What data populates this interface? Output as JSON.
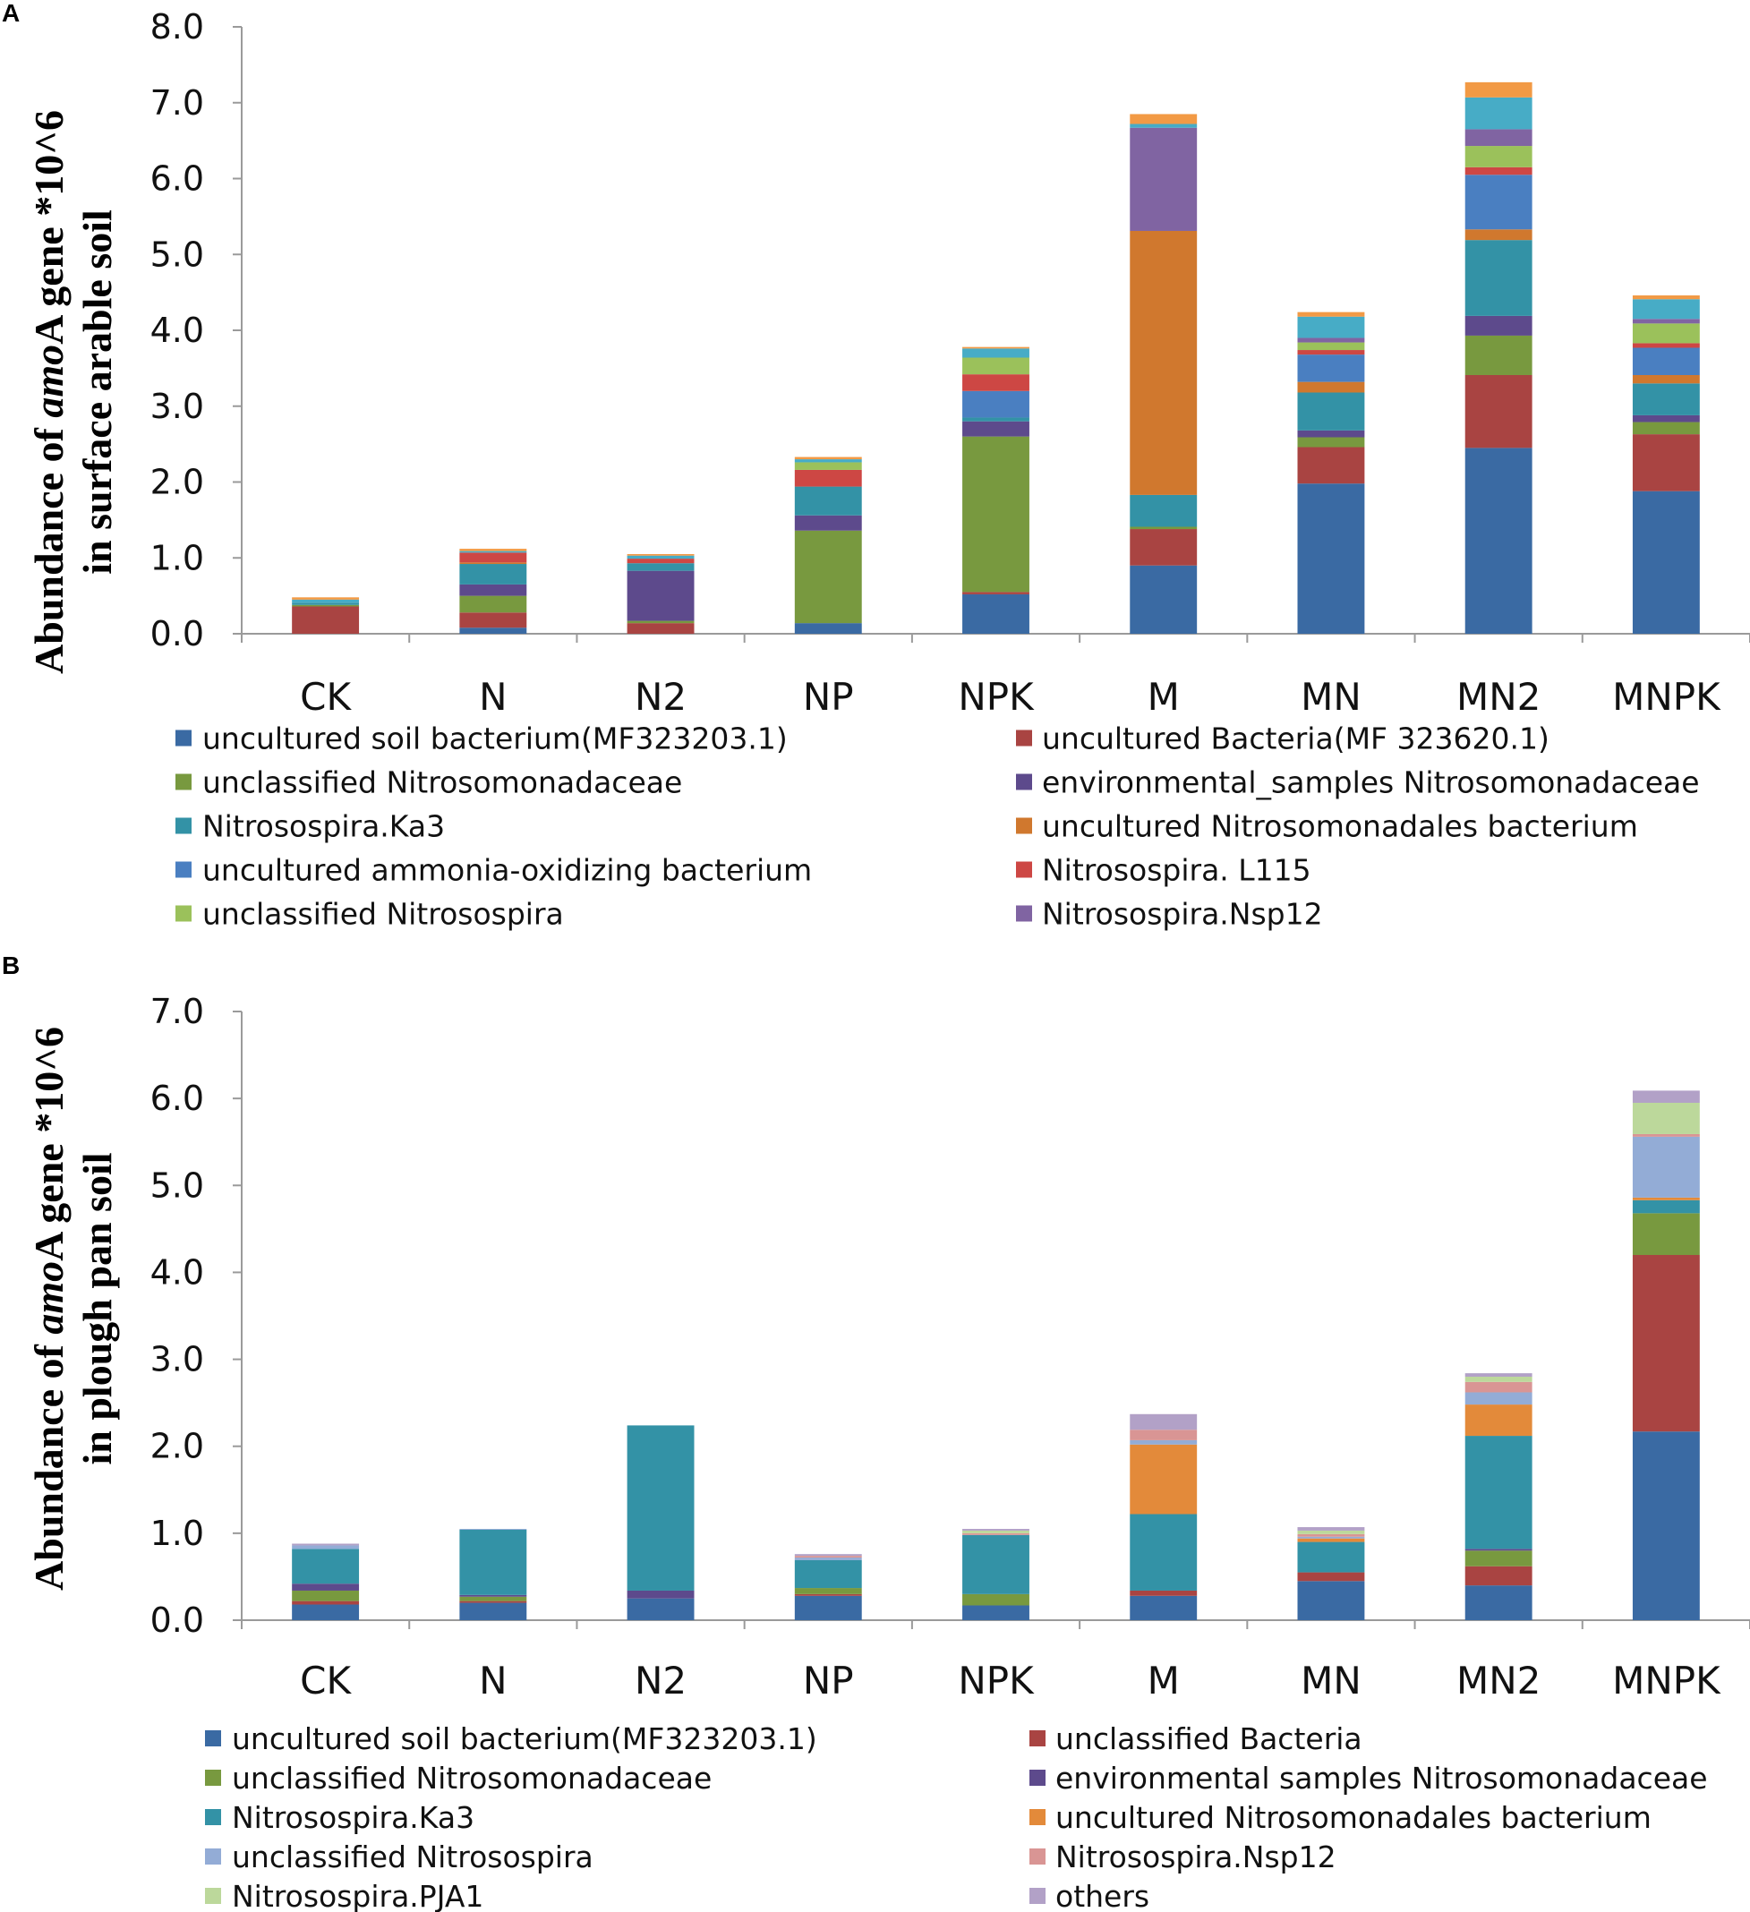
{
  "chart_data": [
    {
      "panel": "A",
      "type": "bar",
      "stacked": true,
      "title": "",
      "ylabel_line1": "Abundance of ",
      "ylabel_italic": "amo",
      "ylabel_line1_end": "A gene *10^6",
      "ylabel_line2": "in surface arable soil",
      "ylim": [
        0,
        8
      ],
      "yticks": [
        "0.0",
        "1.0",
        "2.0",
        "3.0",
        "4.0",
        "5.0",
        "6.0",
        "7.0",
        "8.0"
      ],
      "categories": [
        "CK",
        "N",
        "N2",
        "NP",
        "NPK",
        "M",
        "MN",
        "MN2",
        "MNPK"
      ],
      "series": [
        {
          "name": "uncultured soil bacterium(MF323203.1)",
          "color": "#3a6aa3",
          "values": [
            0.0,
            0.08,
            0.0,
            0.14,
            0.52,
            0.9,
            1.98,
            2.45,
            1.88
          ]
        },
        {
          "name": "uncultured Bacteria(MF 323620.1)",
          "color": "#a94442",
          "values": [
            0.36,
            0.2,
            0.14,
            0.0,
            0.03,
            0.48,
            0.48,
            0.96,
            0.75
          ]
        },
        {
          "name": "unclassified Nitrosomonadaceae",
          "color": "#78993f",
          "values": [
            0.02,
            0.22,
            0.03,
            1.22,
            2.05,
            0.03,
            0.13,
            0.52,
            0.16
          ]
        },
        {
          "name": "environmental_samples Nitrosomonadaceae",
          "color": "#5d4a8c",
          "values": [
            0.0,
            0.15,
            0.66,
            0.2,
            0.2,
            0.0,
            0.09,
            0.26,
            0.09
          ]
        },
        {
          "name": "Nitrosospira.Ka3",
          "color": "#3392a6",
          "values": [
            0.03,
            0.27,
            0.1,
            0.38,
            0.05,
            0.42,
            0.5,
            1.0,
            0.42
          ]
        },
        {
          "name": "uncultured Nitrosomonadales bacterium",
          "color": "#d0782e",
          "values": [
            0.0,
            0.02,
            0.0,
            0.0,
            0.0,
            3.48,
            0.14,
            0.14,
            0.11
          ]
        },
        {
          "name": "uncultured ammonia-oxidizing bacterium",
          "color": "#4a7fc1",
          "values": [
            0.0,
            0.0,
            0.0,
            0.0,
            0.35,
            0.0,
            0.36,
            0.72,
            0.36
          ]
        },
        {
          "name": "Nitrosospira. L115",
          "color": "#cd4744",
          "values": [
            0.0,
            0.13,
            0.06,
            0.22,
            0.22,
            0.0,
            0.06,
            0.1,
            0.06
          ]
        },
        {
          "name": "unclassified Nitrosospira",
          "color": "#9bc15b",
          "values": [
            0.0,
            0.0,
            0.0,
            0.1,
            0.22,
            0.0,
            0.1,
            0.28,
            0.26
          ]
        },
        {
          "name": "Nitrosospira.Nsp12",
          "color": "#8064a2",
          "values": [
            0.0,
            0.0,
            0.0,
            0.0,
            0.0,
            1.36,
            0.06,
            0.22,
            0.06
          ]
        },
        {
          "name": "",
          "color": "#47acc6",
          "values": [
            0.04,
            0.02,
            0.04,
            0.04,
            0.12,
            0.05,
            0.28,
            0.42,
            0.26
          ]
        },
        {
          "name": "",
          "color": "#f29a45",
          "values": [
            0.03,
            0.03,
            0.02,
            0.03,
            0.02,
            0.13,
            0.06,
            0.2,
            0.05
          ]
        }
      ],
      "legend": {
        "columns": 2,
        "entries": [
          {
            "label": "uncultured soil bacterium(MF323203.1)",
            "color": "#3a6aa3"
          },
          {
            "label": "uncultured Bacteria(MF 323620.1)",
            "color": "#a94442"
          },
          {
            "label": "unclassified Nitrosomonadaceae",
            "color": "#78993f"
          },
          {
            "label": "environmental_samples Nitrosomonadaceae",
            "color": "#5d4a8c"
          },
          {
            "label": "Nitrosospira.Ka3",
            "color": "#3392a6"
          },
          {
            "label": "uncultured Nitrosomonadales bacterium",
            "color": "#d0782e"
          },
          {
            "label": "uncultured ammonia-oxidizing bacterium",
            "color": "#4a7fc1"
          },
          {
            "label": "Nitrosospira. L115",
            "color": "#cd4744"
          },
          {
            "label": "unclassified Nitrosospira",
            "color": "#9bc15b"
          },
          {
            "label": "Nitrosospira.Nsp12",
            "color": "#8064a2"
          }
        ]
      }
    },
    {
      "panel": "B",
      "type": "bar",
      "stacked": true,
      "title": "",
      "ylabel_line1": "Abundance of ",
      "ylabel_italic": "amo",
      "ylabel_line1_end": "A gene *10^6",
      "ylabel_line2": "in plough pan soil",
      "ylim": [
        0,
        7
      ],
      "yticks": [
        "0.0",
        "1.0",
        "2.0",
        "3.0",
        "4.0",
        "5.0",
        "6.0",
        "7.0"
      ],
      "categories": [
        "CK",
        "N",
        "N2",
        "NP",
        "NPK",
        "M",
        "MN",
        "MN2",
        "MNPK"
      ],
      "series": [
        {
          "name": "uncultured soil bacterium(MF323203.1)",
          "color": "#3a6aa3",
          "values": [
            0.18,
            0.2,
            0.25,
            0.28,
            0.17,
            0.28,
            0.45,
            0.4,
            2.17
          ]
        },
        {
          "name": "unclassified Bacteria",
          "color": "#a94442",
          "values": [
            0.04,
            0.02,
            0.0,
            0.02,
            0.0,
            0.06,
            0.1,
            0.22,
            2.03
          ]
        },
        {
          "name": "unclassified Nitrosomonadaceae",
          "color": "#78993f",
          "values": [
            0.12,
            0.05,
            0.0,
            0.07,
            0.13,
            0.0,
            0.0,
            0.18,
            0.48
          ]
        },
        {
          "name": "environmental samples Nitrosomonadaceae",
          "color": "#5d4a8c",
          "values": [
            0.08,
            0.02,
            0.09,
            0.0,
            0.0,
            0.0,
            0.0,
            0.02,
            0.0
          ]
        },
        {
          "name": "Nitrosospira.Ka3",
          "color": "#3392a6",
          "values": [
            0.4,
            0.75,
            1.9,
            0.32,
            0.68,
            0.88,
            0.35,
            1.3,
            0.15
          ]
        },
        {
          "name": "uncultured Nitrosomonadales bacterium",
          "color": "#e38a3a",
          "values": [
            0.0,
            0.0,
            0.0,
            0.0,
            0.0,
            0.8,
            0.04,
            0.36,
            0.03
          ]
        },
        {
          "name": "unclassified Nitrosospira",
          "color": "#93acd6",
          "values": [
            0.04,
            0.01,
            0.0,
            0.03,
            0.0,
            0.05,
            0.02,
            0.14,
            0.7
          ]
        },
        {
          "name": "Nitrosospira.Nsp12",
          "color": "#d99594",
          "values": [
            0.0,
            0.0,
            0.0,
            0.02,
            0.02,
            0.12,
            0.03,
            0.12,
            0.03
          ]
        },
        {
          "name": "Nitrosospira.PJA1",
          "color": "#bcd89b",
          "values": [
            0.0,
            0.0,
            0.0,
            0.0,
            0.03,
            0.0,
            0.04,
            0.06,
            0.36
          ]
        },
        {
          "name": "others",
          "color": "#b2a1c7",
          "values": [
            0.02,
            0.0,
            0.0,
            0.02,
            0.02,
            0.18,
            0.04,
            0.04,
            0.14
          ]
        }
      ],
      "legend": {
        "columns": 2,
        "entries": [
          {
            "label": "uncultured soil bacterium(MF323203.1)",
            "color": "#3a6aa3"
          },
          {
            "label": "unclassified Bacteria",
            "color": "#a94442"
          },
          {
            "label": "unclassified Nitrosomonadaceae",
            "color": "#78993f"
          },
          {
            "label": "environmental samples Nitrosomonadaceae",
            "color": "#5d4a8c"
          },
          {
            "label": "Nitrosospira.Ka3",
            "color": "#3392a6"
          },
          {
            "label": "uncultured Nitrosomonadales bacterium",
            "color": "#e38a3a"
          },
          {
            "label": "unclassified Nitrosospira",
            "color": "#93acd6"
          },
          {
            "label": "Nitrosospira.Nsp12",
            "color": "#d99594"
          },
          {
            "label": "Nitrosospira.PJA1",
            "color": "#bcd89b"
          },
          {
            "label": "others",
            "color": "#b2a1c7"
          }
        ]
      }
    }
  ]
}
